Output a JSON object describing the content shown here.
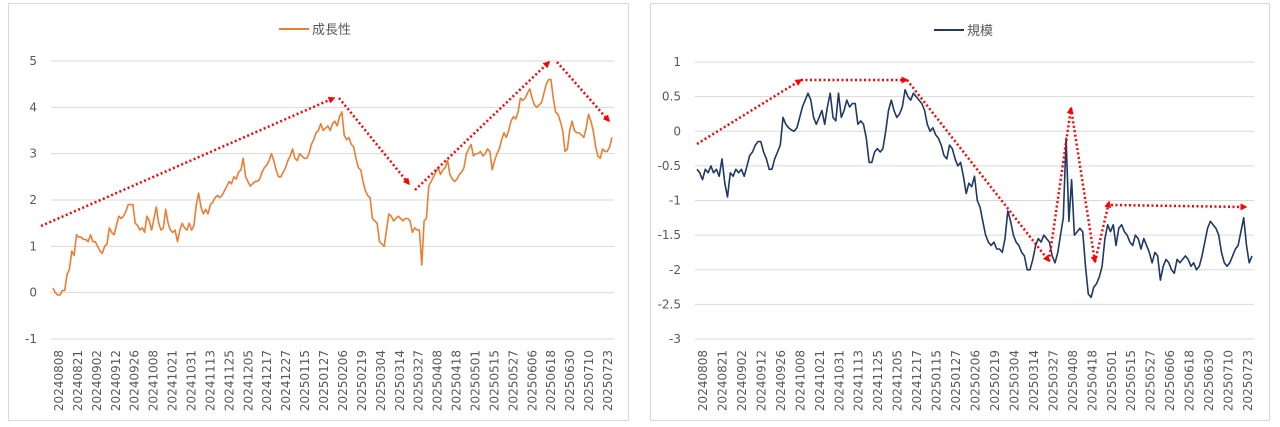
{
  "chart_data": [
    {
      "type": "line",
      "legend": "成長性",
      "color": "#ed7d31",
      "ylim": [
        -1,
        5
      ],
      "y_ticks": [
        "5",
        "4",
        "3",
        "2",
        "1",
        "0",
        "-1"
      ],
      "x_tick_labels": [
        "20240808",
        "20240821",
        "20240902",
        "20240912",
        "20240926",
        "20241008",
        "20241021",
        "20241031",
        "20241113",
        "20241125",
        "20241205",
        "20241217",
        "20241227",
        "20250115",
        "20250127",
        "20250206",
        "20250219",
        "20250304",
        "20250314",
        "20250327",
        "20250408",
        "20250418",
        "20250501",
        "20250515",
        "20250527",
        "20250606",
        "20250618",
        "20250630",
        "20250710",
        "20250723"
      ],
      "values": [
        0.1,
        0.0,
        -0.05,
        -0.05,
        0.05,
        0.05,
        0.4,
        0.5,
        0.9,
        0.8,
        1.25,
        1.2,
        1.2,
        1.15,
        1.15,
        1.1,
        1.25,
        1.1,
        1.1,
        1.0,
        0.9,
        0.85,
        1.0,
        1.05,
        1.4,
        1.3,
        1.25,
        1.45,
        1.65,
        1.6,
        1.65,
        1.75,
        1.9,
        1.9,
        1.9,
        1.5,
        1.45,
        1.35,
        1.4,
        1.3,
        1.65,
        1.55,
        1.35,
        1.6,
        1.85,
        1.5,
        1.35,
        1.4,
        1.8,
        1.5,
        1.35,
        1.3,
        1.35,
        1.1,
        1.35,
        1.5,
        1.4,
        1.35,
        1.5,
        1.35,
        1.45,
        1.9,
        2.15,
        1.85,
        1.7,
        1.8,
        1.7,
        1.9,
        1.95,
        2.05,
        2.1,
        2.05,
        2.1,
        2.2,
        2.3,
        2.4,
        2.35,
        2.5,
        2.45,
        2.6,
        2.65,
        2.9,
        2.5,
        2.4,
        2.3,
        2.35,
        2.4,
        2.4,
        2.45,
        2.6,
        2.7,
        2.75,
        2.85,
        3.0,
        2.85,
        2.65,
        2.5,
        2.5,
        2.6,
        2.7,
        2.85,
        2.95,
        3.1,
        2.9,
        2.85,
        3.0,
        2.95,
        2.9,
        2.9,
        3.0,
        3.2,
        3.3,
        3.45,
        3.5,
        3.65,
        3.5,
        3.55,
        3.6,
        3.5,
        3.65,
        3.7,
        3.6,
        3.8,
        3.9,
        3.4,
        3.3,
        3.35,
        3.2,
        3.15,
        2.9,
        2.7,
        2.65,
        2.4,
        2.2,
        2.1,
        2.05,
        1.6,
        1.55,
        1.5,
        1.1,
        1.05,
        1.0,
        1.35,
        1.7,
        1.65,
        1.55,
        1.6,
        1.65,
        1.6,
        1.55,
        1.6,
        1.6,
        1.55,
        1.3,
        1.4,
        1.35,
        1.35,
        0.6,
        1.55,
        1.6,
        2.3,
        2.4,
        2.5,
        2.6,
        2.7,
        2.55,
        2.65,
        2.7,
        2.85,
        2.55,
        2.45,
        2.4,
        2.45,
        2.55,
        2.6,
        2.7,
        3.0,
        3.1,
        3.2,
        2.95,
        3.0,
        3.0,
        3.05,
        2.95,
        3.0,
        3.1,
        3.05,
        2.65,
        2.85,
        3.0,
        3.1,
        3.3,
        3.45,
        3.35,
        3.5,
        3.7,
        3.8,
        3.75,
        3.9,
        4.2,
        4.15,
        4.2,
        4.3,
        4.4,
        4.2,
        4.05,
        4.0,
        4.05,
        4.1,
        4.3,
        4.5,
        4.6,
        4.6,
        4.2,
        3.9,
        3.85,
        3.7,
        3.5,
        3.05,
        3.1,
        3.5,
        3.7,
        3.5,
        3.45,
        3.45,
        3.4,
        3.35,
        3.55,
        3.85,
        3.7,
        3.5,
        3.15,
        2.95,
        2.9,
        3.1,
        3.05,
        3.05,
        3.15,
        3.35
      ]
    },
    {
      "type": "line",
      "legend": "規模",
      "color": "#1f3864",
      "ylim": [
        -3,
        1
      ],
      "y_ticks": [
        "1",
        "0.5",
        "0",
        "-0.5",
        "-1",
        "-1.5",
        "-2",
        "-2.5",
        "-3"
      ],
      "x_tick_labels": [
        "20240808",
        "20240821",
        "20240902",
        "20240912",
        "20240926",
        "20241008",
        "20241021",
        "20241031",
        "20241113",
        "20241125",
        "20241205",
        "20241217",
        "20250115",
        "20250127",
        "20250206",
        "20250219",
        "20250304",
        "20250314",
        "20250327",
        "20250408",
        "20250418",
        "20250501",
        "20250515",
        "20250527",
        "20250606",
        "20250618",
        "20250630",
        "20250710",
        "20250723"
      ],
      "values": [
        -0.55,
        -0.6,
        -0.7,
        -0.55,
        -0.6,
        -0.5,
        -0.6,
        -0.55,
        -0.65,
        -0.4,
        -0.75,
        -0.95,
        -0.6,
        -0.65,
        -0.55,
        -0.6,
        -0.55,
        -0.65,
        -0.5,
        -0.35,
        -0.3,
        -0.2,
        -0.15,
        -0.15,
        -0.3,
        -0.4,
        -0.55,
        -0.55,
        -0.4,
        -0.3,
        -0.2,
        0.2,
        0.1,
        0.05,
        0.02,
        0.0,
        0.05,
        0.2,
        0.35,
        0.45,
        0.55,
        0.45,
        0.2,
        0.1,
        0.2,
        0.3,
        0.1,
        0.35,
        0.55,
        0.2,
        0.15,
        0.55,
        0.2,
        0.3,
        0.45,
        0.35,
        0.4,
        0.4,
        0.1,
        0.15,
        0.1,
        -0.1,
        -0.45,
        -0.45,
        -0.3,
        -0.25,
        -0.3,
        -0.25,
        0.0,
        0.3,
        0.45,
        0.3,
        0.2,
        0.25,
        0.35,
        0.6,
        0.5,
        0.45,
        0.55,
        0.5,
        0.45,
        0.4,
        0.3,
        0.1,
        0.0,
        0.05,
        -0.05,
        -0.1,
        -0.2,
        -0.35,
        -0.4,
        -0.2,
        -0.25,
        -0.4,
        -0.5,
        -0.45,
        -0.65,
        -0.9,
        -0.75,
        -0.8,
        -0.65,
        -1.0,
        -1.1,
        -1.3,
        -1.5,
        -1.6,
        -1.65,
        -1.6,
        -1.7,
        -1.7,
        -1.75,
        -1.55,
        -1.15,
        -1.3,
        -1.5,
        -1.6,
        -1.65,
        -1.75,
        -1.8,
        -2.0,
        -2.0,
        -1.85,
        -1.65,
        -1.55,
        -1.6,
        -1.5,
        -1.55,
        -1.6,
        -1.8,
        -1.9,
        -1.75,
        -1.5,
        -1.25,
        -0.1,
        -1.3,
        -0.7,
        -1.5,
        -1.45,
        -1.4,
        -1.45,
        -1.95,
        -2.35,
        -2.4,
        -2.25,
        -2.2,
        -2.1,
        -1.95,
        -1.55,
        -1.35,
        -1.45,
        -1.35,
        -1.65,
        -1.4,
        -1.35,
        -1.45,
        -1.5,
        -1.6,
        -1.65,
        -1.5,
        -1.55,
        -1.7,
        -1.55,
        -1.65,
        -1.75,
        -1.9,
        -1.75,
        -1.8,
        -2.15,
        -1.95,
        -1.85,
        -1.9,
        -2.0,
        -2.05,
        -1.85,
        -1.9,
        -1.85,
        -1.8,
        -1.85,
        -1.95,
        -1.9,
        -2.0,
        -1.95,
        -1.8,
        -1.6,
        -1.4,
        -1.3,
        -1.35,
        -1.4,
        -1.5,
        -1.75,
        -1.9,
        -1.95,
        -1.9,
        -1.8,
        -1.7,
        -1.65,
        -1.45,
        -1.25,
        -1.65,
        -1.9,
        -1.8
      ]
    }
  ]
}
